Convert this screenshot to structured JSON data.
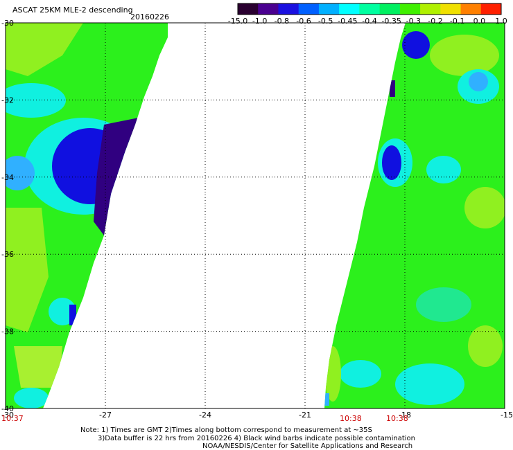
{
  "header": {
    "title": "ASCAT 25KM MLE-2 descending",
    "date": "20160226"
  },
  "colorbar": {
    "labels": [
      "-15.0",
      "-1.0",
      "-0.8",
      "-0.6",
      "-0.5",
      "-0.45",
      "-0.4",
      "-0.35",
      "-0.3",
      "-0.2",
      "-0.1",
      "0.0",
      "1.0"
    ],
    "colors": [
      "#2a0030",
      "#4a0090",
      "#1a10e0",
      "#0060ff",
      "#00b0ff",
      "#00ffff",
      "#00ffa0",
      "#00f060",
      "#40f000",
      "#b0f000",
      "#f0e000",
      "#ff8000",
      "#ff2000"
    ]
  },
  "axes": {
    "lat_labels": [
      "-30",
      "-32",
      "-34",
      "-36",
      "-38",
      "-40"
    ],
    "lat_values": [
      -30,
      -32,
      -34,
      -36,
      -38,
      -40
    ],
    "lon_labels": [
      "-30",
      "-27",
      "-24",
      "-21",
      "-18",
      "-15"
    ],
    "lon_values": [
      -30,
      -27,
      -24,
      -21,
      -18,
      -15
    ]
  },
  "times": [
    "10:37",
    "10:38",
    "10:38"
  ],
  "notes": {
    "line1": "Note: 1) Times are GMT 2)Times along bottom correspond to measurement at ~35S",
    "line2": "3)Data buffer is 22 hrs from 20160226 4) Black wind barbs indicate possible contamination",
    "line3": "NOAA/NESDIS/Center for Satellite Applications and Research"
  },
  "palette": {
    "green": "#2cf01c",
    "lime": "#90f020",
    "cyan": "#10f0e0",
    "teal": "#20e890",
    "blue": "#1010e0",
    "purple": "#300080",
    "lightblue": "#30b0ff"
  }
}
